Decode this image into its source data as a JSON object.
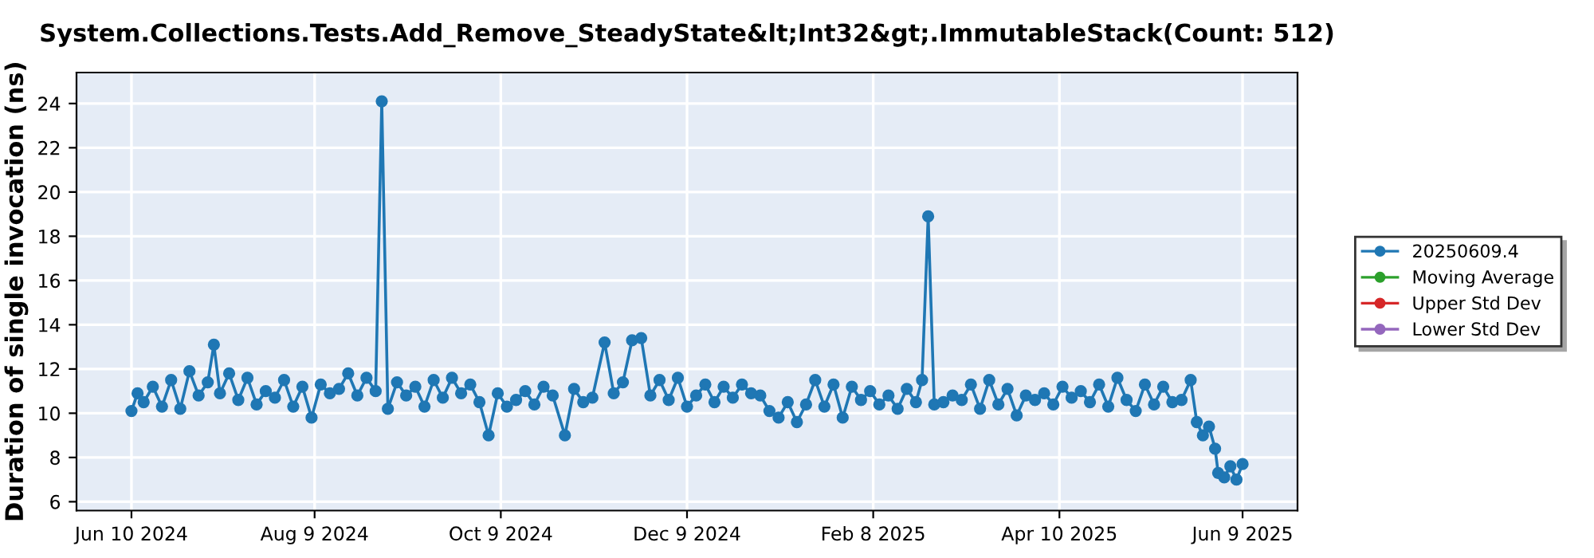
{
  "chart_data": {
    "type": "line",
    "title": "System.Collections.Tests.Add_Remove_SteadyState&lt;Int32&gt;.ImmutableStack(Count: 512)",
    "ylabel": "Duration of single invocation (ns)",
    "x": [
      "2024-06-10",
      "2024-06-12",
      "2024-06-14",
      "2024-06-17",
      "2024-06-20",
      "2024-06-23",
      "2024-06-26",
      "2024-06-29",
      "2024-07-02",
      "2024-07-05",
      "2024-07-07",
      "2024-07-09",
      "2024-07-12",
      "2024-07-15",
      "2024-07-18",
      "2024-07-21",
      "2024-07-24",
      "2024-07-27",
      "2024-07-30",
      "2024-08-02",
      "2024-08-05",
      "2024-08-08",
      "2024-08-11",
      "2024-08-14",
      "2024-08-17",
      "2024-08-20",
      "2024-08-23",
      "2024-08-26",
      "2024-08-29",
      "2024-08-31",
      "2024-09-02",
      "2024-09-05",
      "2024-09-08",
      "2024-09-11",
      "2024-09-14",
      "2024-09-17",
      "2024-09-20",
      "2024-09-23",
      "2024-09-26",
      "2024-09-29",
      "2024-10-02",
      "2024-10-05",
      "2024-10-08",
      "2024-10-11",
      "2024-10-14",
      "2024-10-17",
      "2024-10-20",
      "2024-10-23",
      "2024-10-26",
      "2024-10-30",
      "2024-11-02",
      "2024-11-05",
      "2024-11-08",
      "2024-11-12",
      "2024-11-15",
      "2024-11-18",
      "2024-11-21",
      "2024-11-24",
      "2024-11-27",
      "2024-11-30",
      "2024-12-03",
      "2024-12-06",
      "2024-12-09",
      "2024-12-12",
      "2024-12-15",
      "2024-12-18",
      "2024-12-21",
      "2024-12-24",
      "2024-12-27",
      "2024-12-30",
      "2025-01-02",
      "2025-01-05",
      "2025-01-08",
      "2025-01-11",
      "2025-01-14",
      "2025-01-17",
      "2025-01-20",
      "2025-01-23",
      "2025-01-26",
      "2025-01-29",
      "2025-02-01",
      "2025-02-04",
      "2025-02-07",
      "2025-02-10",
      "2025-02-13",
      "2025-02-16",
      "2025-02-19",
      "2025-02-22",
      "2025-02-24",
      "2025-02-26",
      "2025-02-28",
      "2025-03-03",
      "2025-03-06",
      "2025-03-09",
      "2025-03-12",
      "2025-03-15",
      "2025-03-18",
      "2025-03-21",
      "2025-03-24",
      "2025-03-27",
      "2025-03-30",
      "2025-04-02",
      "2025-04-05",
      "2025-04-08",
      "2025-04-11",
      "2025-04-14",
      "2025-04-17",
      "2025-04-20",
      "2025-04-23",
      "2025-04-26",
      "2025-04-29",
      "2025-05-02",
      "2025-05-05",
      "2025-05-08",
      "2025-05-11",
      "2025-05-14",
      "2025-05-17",
      "2025-05-20",
      "2025-05-23",
      "2025-05-25",
      "2025-05-27",
      "2025-05-29",
      "2025-05-31",
      "2025-06-01",
      "2025-06-03",
      "2025-06-05",
      "2025-06-07",
      "2025-06-09"
    ],
    "series": [
      {
        "name": "20250609.4",
        "color": "#1f77b4",
        "values": [
          10.1,
          10.9,
          10.5,
          11.2,
          10.3,
          11.5,
          10.2,
          11.9,
          10.8,
          11.4,
          13.1,
          10.9,
          11.8,
          10.6,
          11.6,
          10.4,
          11.0,
          10.7,
          11.5,
          10.3,
          11.2,
          9.8,
          11.3,
          10.9,
          11.1,
          11.8,
          10.8,
          11.6,
          11.0,
          24.1,
          10.2,
          11.4,
          10.8,
          11.2,
          10.3,
          11.5,
          10.7,
          11.6,
          10.9,
          11.3,
          10.5,
          9.0,
          10.9,
          10.3,
          10.6,
          11.0,
          10.4,
          11.2,
          10.8,
          9.0,
          11.1,
          10.5,
          10.7,
          13.2,
          10.9,
          11.4,
          13.3,
          13.4,
          10.8,
          11.5,
          10.6,
          11.6,
          10.3,
          10.8,
          11.3,
          10.5,
          11.2,
          10.7,
          11.3,
          10.9,
          10.8,
          10.1,
          9.8,
          10.5,
          9.6,
          10.4,
          11.5,
          10.3,
          11.3,
          9.8,
          11.2,
          10.6,
          11.0,
          10.4,
          10.8,
          10.2,
          11.1,
          10.5,
          11.5,
          18.9,
          10.4,
          10.5,
          10.8,
          10.6,
          11.3,
          10.2,
          11.5,
          10.4,
          11.1,
          9.9,
          10.8,
          10.6,
          10.9,
          10.4,
          11.2,
          10.7,
          11.0,
          10.5,
          11.3,
          10.3,
          11.6,
          10.6,
          10.1,
          11.3,
          10.4,
          11.2,
          10.5,
          10.6,
          11.5,
          9.6,
          9.0,
          9.4,
          8.4,
          7.3,
          7.1,
          7.6,
          7.0,
          7.7
        ]
      },
      {
        "name": "Moving Average",
        "color": "#2ca02c",
        "values": [
          null,
          null,
          null,
          null,
          null,
          null,
          null,
          null,
          null,
          null,
          null,
          null,
          null,
          null,
          null,
          null,
          null,
          null,
          null,
          null,
          null,
          null,
          null,
          null,
          null,
          null,
          null,
          null,
          null,
          null,
          null,
          null,
          null,
          null,
          null,
          null,
          null,
          null,
          null,
          null,
          null,
          null,
          null,
          null,
          null,
          null,
          null,
          null,
          null,
          null,
          null,
          null,
          null,
          null,
          null,
          null,
          null,
          null,
          null,
          null,
          null,
          null,
          null,
          null,
          null,
          null,
          null,
          null,
          null,
          null,
          null,
          null,
          null,
          null,
          null,
          null,
          null,
          null,
          null,
          null,
          null,
          null,
          null,
          null,
          null,
          null,
          null,
          null,
          null,
          null,
          null,
          null,
          null,
          null,
          null,
          null,
          null,
          null,
          null,
          null,
          null,
          null,
          null,
          null,
          null,
          null,
          null,
          null,
          null,
          null,
          null,
          null,
          null,
          null,
          null,
          null,
          null,
          null,
          null,
          null,
          null,
          null,
          null,
          null,
          null,
          null,
          null,
          null
        ]
      },
      {
        "name": "Upper Std Dev",
        "color": "#d62728",
        "values": [
          null,
          null,
          null,
          null,
          null,
          null,
          null,
          null,
          null,
          null,
          null,
          null,
          null,
          null,
          null,
          null,
          null,
          null,
          null,
          null,
          null,
          null,
          null,
          null,
          null,
          null,
          null,
          null,
          null,
          null,
          null,
          null,
          null,
          null,
          null,
          null,
          null,
          null,
          null,
          null,
          null,
          null,
          null,
          null,
          null,
          null,
          null,
          null,
          null,
          null,
          null,
          null,
          null,
          null,
          null,
          null,
          null,
          null,
          null,
          null,
          null,
          null,
          null,
          null,
          null,
          null,
          null,
          null,
          null,
          null,
          null,
          null,
          null,
          null,
          null,
          null,
          null,
          null,
          null,
          null,
          null,
          null,
          null,
          null,
          null,
          null,
          null,
          null,
          null,
          null,
          null,
          null,
          null,
          null,
          null,
          null,
          null,
          null,
          null,
          null,
          null,
          null,
          null,
          null,
          null,
          null,
          null,
          null,
          null,
          null,
          null,
          null,
          null,
          null,
          null,
          null,
          null,
          null,
          null,
          null,
          null,
          null,
          null,
          null,
          null,
          null,
          null,
          null
        ]
      },
      {
        "name": "Lower Std Dev",
        "color": "#9467bd",
        "values": [
          null,
          null,
          null,
          null,
          null,
          null,
          null,
          null,
          null,
          null,
          null,
          null,
          null,
          null,
          null,
          null,
          null,
          null,
          null,
          null,
          null,
          null,
          null,
          null,
          null,
          null,
          null,
          null,
          null,
          null,
          null,
          null,
          null,
          null,
          null,
          null,
          null,
          null,
          null,
          null,
          null,
          null,
          null,
          null,
          null,
          null,
          null,
          null,
          null,
          null,
          null,
          null,
          null,
          null,
          null,
          null,
          null,
          null,
          null,
          null,
          null,
          null,
          null,
          null,
          null,
          null,
          null,
          null,
          null,
          null,
          null,
          null,
          null,
          null,
          null,
          null,
          null,
          null,
          null,
          null,
          null,
          null,
          null,
          null,
          null,
          null,
          null,
          null,
          null,
          null,
          null,
          null,
          null,
          null,
          null,
          null,
          null,
          null,
          null,
          null,
          null,
          null,
          null,
          null,
          null,
          null,
          null,
          null,
          null,
          null,
          null,
          null,
          null,
          null,
          null,
          null,
          null,
          null,
          null,
          null,
          null,
          null,
          null,
          null,
          null,
          null,
          null,
          null
        ]
      }
    ],
    "xlim": [
      "2024-05-23",
      "2025-06-27"
    ],
    "xticks": [
      {
        "value": "2024-06-10",
        "label": "Jun 10 2024"
      },
      {
        "value": "2024-08-09",
        "label": "Aug 9 2024"
      },
      {
        "value": "2024-10-09",
        "label": "Oct 9 2024"
      },
      {
        "value": "2024-12-09",
        "label": "Dec 9 2024"
      },
      {
        "value": "2025-02-08",
        "label": "Feb 8 2025"
      },
      {
        "value": "2025-04-10",
        "label": "Apr 10 2025"
      },
      {
        "value": "2025-06-09",
        "label": "Jun 9 2025"
      }
    ],
    "ylim": [
      5.6,
      25.4
    ],
    "yticks": [
      6,
      8,
      10,
      12,
      14,
      16,
      18,
      20,
      22,
      24
    ],
    "grid": true,
    "legend": "right",
    "marker": "circle",
    "line_style": "solid"
  }
}
